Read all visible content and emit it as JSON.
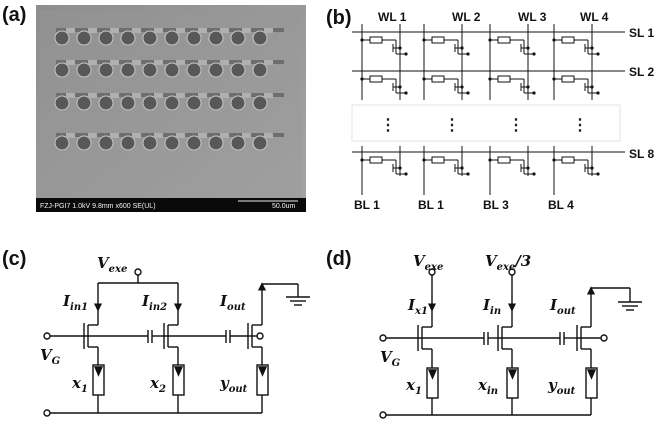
{
  "panels": {
    "a": "(a)",
    "b": "(b)",
    "c": "(c)",
    "d": "(d)"
  },
  "sem": {
    "caption": "FZJ-PGI7 1.0kV 9.8mm x600 SE(UL)",
    "scale": "50.0um",
    "rows": 4,
    "cols": 10
  },
  "crossbar": {
    "word_lines": [
      "WL 1",
      "WL 2",
      "WL 3",
      "WL 4"
    ],
    "select_lines": [
      "SL 1",
      "SL 2",
      "SL 8"
    ],
    "bit_lines": [
      "BL 1",
      "BL 1",
      "BL 3",
      "BL 4"
    ],
    "ellipsis": "⋮"
  },
  "circuit_c": {
    "vexe": "V",
    "vexe_sub": "exe",
    "vg": "V",
    "vg_sub": "G",
    "i_in1": "I",
    "i_in1_sub": "in1",
    "i_in2": "I",
    "i_in2_sub": "in2",
    "i_out": "I",
    "i_out_sub": "out",
    "x1": "x",
    "x1_sub": "1",
    "x2": "x",
    "x2_sub": "2",
    "yout": "y",
    "yout_sub": "out"
  },
  "circuit_d": {
    "vexe": "V",
    "vexe_sub": "exe",
    "vexe3": "V",
    "vexe3_sub": "exe",
    "vexe3_suffix": "/3",
    "vg": "V",
    "vg_sub": "G",
    "i_x1": "I",
    "i_x1_sub": "x1",
    "i_in": "I",
    "i_in_sub": "in",
    "i_out": "I",
    "i_out_sub": "out",
    "x1": "x",
    "x1_sub": "1",
    "xin": "x",
    "xin_sub": "in",
    "yout": "y",
    "yout_sub": "out"
  }
}
